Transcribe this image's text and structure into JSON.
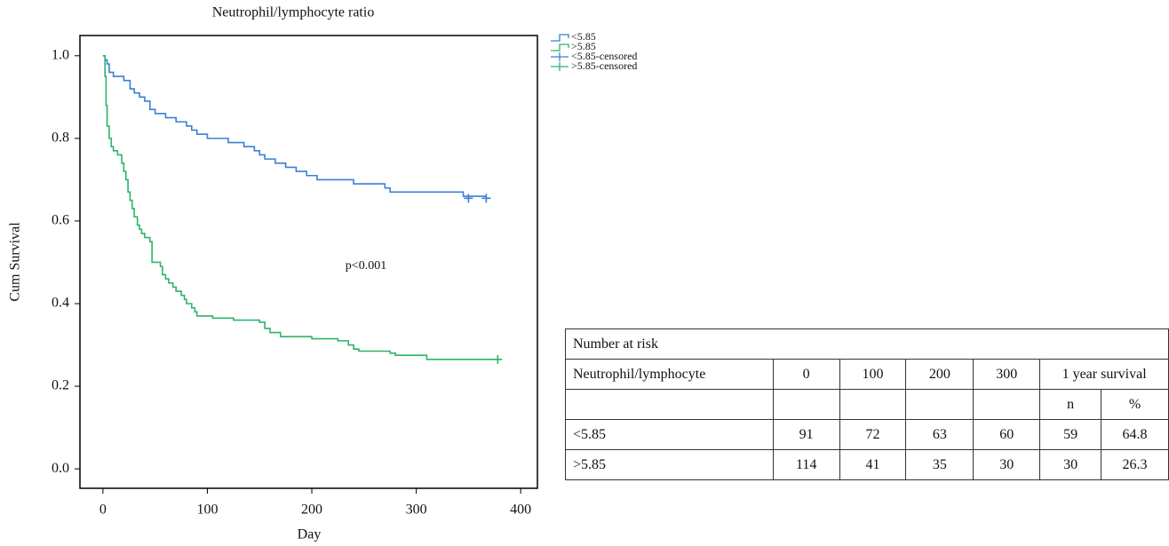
{
  "chart_data": {
    "type": "km",
    "title": "Neutrophil/lymphocyte ratio",
    "x_label": "Day",
    "y_label": "Cum Survival",
    "annotation": "p<0.001",
    "xlim": [
      -22,
      416
    ],
    "ylim": [
      -0.047,
      1.049
    ],
    "xticks": [
      0,
      100,
      200,
      300,
      400
    ],
    "yticks": [
      {
        "value": 0,
        "label": "0.0"
      },
      {
        "value": 0.2,
        "label": "0.2"
      },
      {
        "value": 0.4,
        "label": "0.4"
      },
      {
        "value": 0.6,
        "label": "0.6"
      },
      {
        "value": 0.8,
        "label": "0.8"
      },
      {
        "value": 1,
        "label": "1.0"
      }
    ],
    "legend": "outside-right",
    "series": [
      {
        "name": "<5.85",
        "color": "#3a7fd5",
        "style": "step",
        "x": [
          0,
          2,
          4,
          6,
          10,
          20,
          26,
          30,
          35,
          40,
          45,
          50,
          60,
          70,
          80,
          85,
          90,
          100,
          120,
          135,
          145,
          150,
          155,
          165,
          175,
          185,
          195,
          205,
          240,
          270,
          275,
          345,
          367
        ],
        "values": [
          1,
          0.99,
          0.98,
          0.96,
          0.95,
          0.94,
          0.92,
          0.91,
          0.9,
          0.89,
          0.87,
          0.86,
          0.85,
          0.84,
          0.83,
          0.82,
          0.81,
          0.8,
          0.79,
          0.78,
          0.77,
          0.76,
          0.75,
          0.74,
          0.73,
          0.72,
          0.71,
          0.7,
          0.69,
          0.68,
          0.67,
          0.66,
          0.66
        ]
      },
      {
        "name": ">5.85",
        "color": "#2db36b",
        "style": "step",
        "x": [
          0,
          2,
          3,
          4,
          6,
          8,
          10,
          14,
          18,
          20,
          22,
          24,
          26,
          28,
          30,
          33,
          35,
          37,
          40,
          45,
          47,
          55,
          57,
          60,
          63,
          67,
          70,
          75,
          78,
          80,
          85,
          88,
          90,
          105,
          125,
          150,
          155,
          160,
          170,
          200,
          225,
          235,
          240,
          245,
          275,
          280,
          310,
          378
        ],
        "values": [
          1,
          0.95,
          0.88,
          0.83,
          0.8,
          0.78,
          0.77,
          0.76,
          0.74,
          0.72,
          0.7,
          0.67,
          0.65,
          0.63,
          0.61,
          0.59,
          0.58,
          0.57,
          0.56,
          0.55,
          0.5,
          0.49,
          0.47,
          0.46,
          0.45,
          0.44,
          0.43,
          0.42,
          0.41,
          0.4,
          0.39,
          0.38,
          0.37,
          0.365,
          0.36,
          0.355,
          0.34,
          0.33,
          0.32,
          0.315,
          0.31,
          0.3,
          0.29,
          0.285,
          0.28,
          0.275,
          0.265,
          0.265
        ]
      },
      {
        "name": "<5.85-censored",
        "color": "#3a7fd5",
        "style": "censor",
        "x": [
          350,
          367
        ],
        "values": [
          0.655,
          0.655
        ]
      },
      {
        "name": ">5.85-censored",
        "color": "#2db36b",
        "style": "censor",
        "x": [
          378
        ],
        "values": [
          0.265
        ]
      }
    ]
  },
  "table": {
    "title": "Number at risk",
    "header": [
      "Neutrophil/lymphocyte",
      "0",
      "100",
      "200",
      "300",
      "1 year survival"
    ],
    "subheader": [
      "n",
      "%"
    ],
    "rows": [
      [
        "<5.85",
        "91",
        "72",
        "63",
        "60",
        "59",
        "64.8"
      ],
      [
        ">5.85",
        "114",
        "41",
        "35",
        "30",
        "30",
        "26.3"
      ]
    ]
  }
}
